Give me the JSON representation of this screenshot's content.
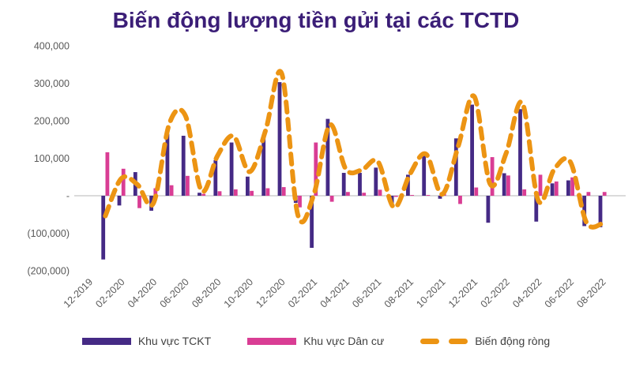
{
  "title": "Biến động lượng tiền gửi tại các TCTD",
  "colors": {
    "title": "#3b1e77",
    "tckt_bar": "#452a85",
    "dancu_bar": "#d93d94",
    "net_line": "#ec9413",
    "axis_text": "#595959",
    "zero_line": "#d6d6d6",
    "legend_text": "#404040"
  },
  "chart_data": {
    "type": "bar",
    "subtype": "combo-bar-dashed-line",
    "title": "Biến động lượng tiền gửi tại các TCTD",
    "categories": [
      "12-2019",
      "01-2020",
      "02-2020",
      "03-2020",
      "04-2020",
      "05-2020",
      "06-2020",
      "07-2020",
      "08-2020",
      "09-2020",
      "10-2020",
      "11-2020",
      "12-2020",
      "01-2021",
      "02-2021",
      "03-2021",
      "04-2021",
      "05-2021",
      "06-2021",
      "07-2021",
      "08-2021",
      "09-2021",
      "10-2021",
      "11-2021",
      "12-2021",
      "01-2022",
      "02-2022",
      "03-2022",
      "04-2022",
      "05-2022",
      "06-2022",
      "07-2022",
      "08-2022"
    ],
    "x_tick_labels": [
      "12-2019",
      "02-2020",
      "04-2020",
      "06-2020",
      "08-2020",
      "10-2020",
      "12-2020",
      "02-2021",
      "04-2021",
      "06-2021",
      "08-2021",
      "10-2021",
      "12-2021",
      "02-2022",
      "04-2022",
      "06-2022",
      "08-2022"
    ],
    "series": [
      {
        "name": "Khu vực TCKT",
        "kind": "bar",
        "values": [
          null,
          -170000,
          -26000,
          63000,
          -40000,
          165000,
          160000,
          8000,
          95000,
          142000,
          51000,
          155000,
          303000,
          -19000,
          -139000,
          205000,
          61000,
          61000,
          75000,
          -28000,
          56000,
          109000,
          -8000,
          153000,
          243000,
          -72000,
          60000,
          231000,
          -69000,
          33000,
          41000,
          -81000,
          -84000
        ]
      },
      {
        "name": "Khu vực Dân cư",
        "kind": "bar",
        "values": [
          null,
          116000,
          72000,
          -33000,
          20000,
          28000,
          53000,
          5000,
          12000,
          17000,
          13000,
          20000,
          23000,
          -31000,
          142000,
          -16000,
          10000,
          8000,
          16000,
          -3000,
          2000,
          2000,
          12000,
          -22000,
          22000,
          103000,
          54000,
          17000,
          56000,
          38000,
          49000,
          10000,
          10000
        ]
      },
      {
        "name": "Biến động ròng",
        "kind": "dashed-line",
        "values": [
          null,
          -54000,
          46000,
          30000,
          -20000,
          193000,
          213000,
          13000,
          107000,
          159000,
          64000,
          175000,
          326000,
          -50000,
          3000,
          189000,
          71000,
          69000,
          91000,
          -31000,
          58000,
          111000,
          4000,
          131000,
          265000,
          31000,
          114000,
          248000,
          -13000,
          71000,
          90000,
          -71000,
          -74000
        ]
      }
    ],
    "y_ticks": [
      {
        "label": "400,000",
        "value": 400000
      },
      {
        "label": "300,000",
        "value": 300000
      },
      {
        "label": "200,000",
        "value": 200000
      },
      {
        "label": "100,000",
        "value": 100000
      },
      {
        "label": "-",
        "value": 0
      },
      {
        "label": "(100,000)",
        "value": -100000
      },
      {
        "label": "(200,000)",
        "value": -200000
      }
    ],
    "ylim": [
      -200000,
      400000
    ],
    "xlabel": "",
    "ylabel": "",
    "grid": false,
    "legend_position": "bottom"
  },
  "legend": {
    "items": [
      {
        "label": "Khu vực TCKT",
        "marker": "bar"
      },
      {
        "label": "Khu vực Dân cư",
        "marker": "bar"
      },
      {
        "label": "Biến động ròng",
        "marker": "dashed-line"
      }
    ]
  }
}
